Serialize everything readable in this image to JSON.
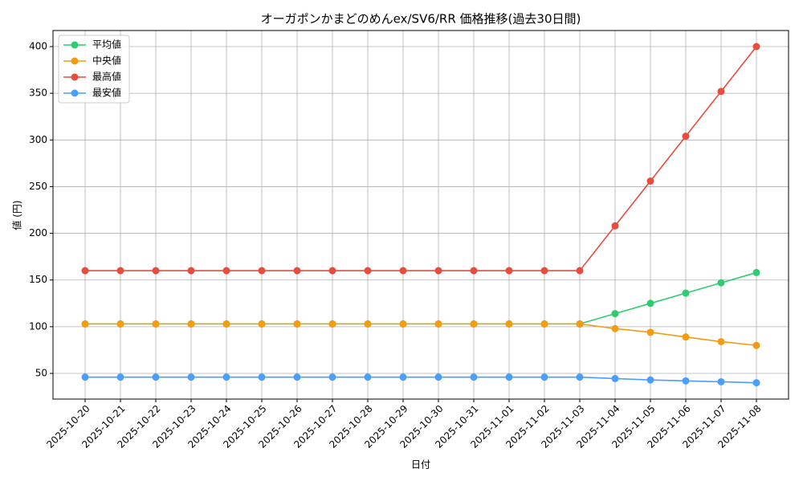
{
  "chart_data": {
    "type": "line",
    "title": "オーガポンかまどのめんex/SV6/RR 価格推移(過去30日間)",
    "x_label": "日付",
    "y_label": "値 (円)",
    "categories": [
      "2025-10-20",
      "2025-10-21",
      "2025-10-22",
      "2025-10-23",
      "2025-10-24",
      "2025-10-25",
      "2025-10-26",
      "2025-10-27",
      "2025-10-28",
      "2025-10-29",
      "2025-10-30",
      "2025-10-31",
      "2025-11-01",
      "2025-11-02",
      "2025-11-03",
      "2025-11-04",
      "2025-11-05",
      "2025-11-06",
      "2025-11-07",
      "2025-11-08"
    ],
    "series": [
      {
        "name": "平均値",
        "color": "#2ecc71",
        "values": [
          103,
          103,
          103,
          103,
          103,
          103,
          103,
          103,
          103,
          103,
          103,
          103,
          103,
          103,
          103,
          114,
          125,
          136,
          147,
          158
        ]
      },
      {
        "name": "中央値",
        "color": "#f39c12",
        "values": [
          103,
          103,
          103,
          103,
          103,
          103,
          103,
          103,
          103,
          103,
          103,
          103,
          103,
          103,
          103,
          98,
          94,
          89,
          84,
          80
        ]
      },
      {
        "name": "最高値",
        "color": "#e74c3c",
        "values": [
          160,
          160,
          160,
          160,
          160,
          160,
          160,
          160,
          160,
          160,
          160,
          160,
          160,
          160,
          160,
          208,
          256,
          304,
          352,
          400
        ]
      },
      {
        "name": "最安値",
        "color": "#4a9eff",
        "values": [
          46,
          46,
          46,
          46,
          46,
          46,
          46,
          46,
          46,
          46,
          46,
          46,
          46,
          46,
          46,
          44.5,
          43,
          42,
          41,
          40
        ]
      }
    ],
    "ylim": [
      22.5,
      417.2
    ],
    "yticks": [
      50,
      100,
      150,
      200,
      250,
      300,
      350,
      400
    ],
    "grid": true,
    "legend": "upper-left"
  }
}
